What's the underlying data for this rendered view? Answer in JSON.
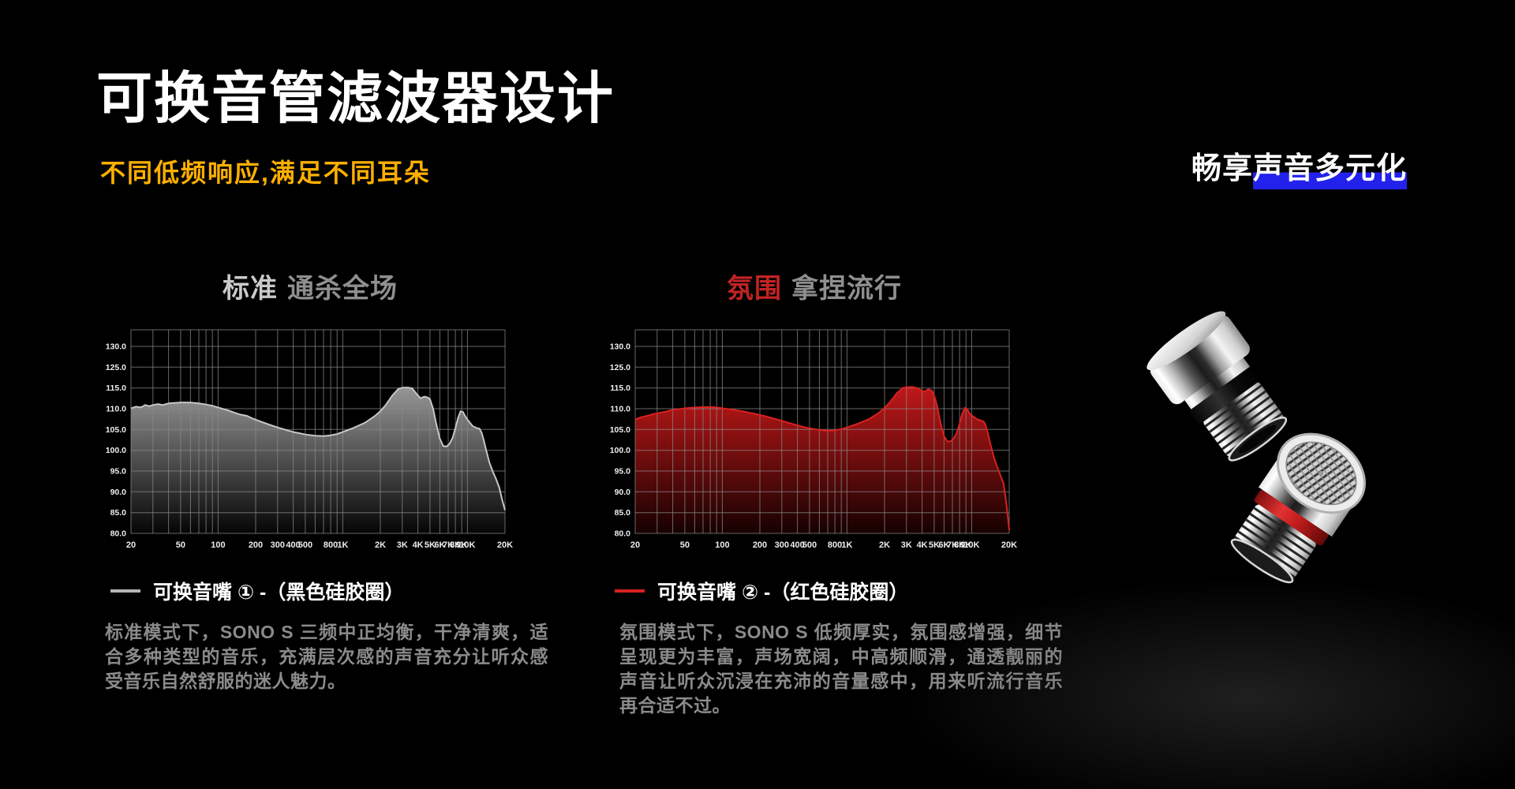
{
  "header": {
    "title": "可换音管滤波器设计",
    "subtitle": "不同低频响应,满足不同耳朵",
    "tagline": {
      "plain": "畅享",
      "highlighted": "声音多元化"
    }
  },
  "colors": {
    "background": "#000000",
    "subtitle_gold": "#ffb000",
    "highlight_blue": "#2222ec",
    "accent_red": "#c32323",
    "body_gray": "#8b8b8b",
    "grid_gray": "#8a8a8a"
  },
  "sections": [
    {
      "id": "standard",
      "title_accent": "标准",
      "title_rest": "通杀全场",
      "legend_label": "可换音嘴 ① -（黑色硅胶圈）",
      "description": "标准模式下，SONO S 三频中正均衡，干净清爽，适合多种类型的音乐，充满层次感的声音充分让听众感受音乐自然舒服的迷人魅力。"
    },
    {
      "id": "ambient",
      "title_accent": "氛围",
      "title_rest": "拿捏流行",
      "legend_label": "可换音嘴 ② -（红色硅胶圈）",
      "description": "氛围模式下，SONO S 低频厚实，氛围感增强，细节呈现更为丰富，声场宽阔，中高频顺滑，通透靓丽的声音让听众沉浸在充沛的音量感中，用来听流行音乐再合适不过。"
    }
  ],
  "product": {
    "name": "replaceable-filter-nozzles",
    "top_nozzle_ring": "黑色硅胶圈",
    "bottom_nozzle_ring": "红色硅胶圈"
  },
  "chart_data": [
    {
      "type": "area",
      "title": "标准 通杀全场",
      "xlabel": "",
      "ylabel": "",
      "x_scale": "log",
      "x_range": [
        20,
        20000
      ],
      "ylim": [
        80,
        130
      ],
      "grid": "on",
      "legend_position": "below",
      "y_tick_labels": [
        "130.0",
        "125.0",
        "115.0",
        "110.0",
        "105.0",
        "100.0",
        "95.0",
        "90.0",
        "85.0",
        "80.0"
      ],
      "x_ticks": [
        [
          20,
          "20"
        ],
        [
          50,
          "50"
        ],
        [
          100,
          "100"
        ],
        [
          200,
          "200"
        ],
        [
          300,
          "300"
        ],
        [
          400,
          "400"
        ],
        [
          500,
          "500"
        ],
        [
          800,
          "800"
        ],
        [
          1000,
          "1K"
        ],
        [
          2000,
          "2K"
        ],
        [
          3000,
          "3K"
        ],
        [
          4000,
          "4K"
        ],
        [
          5000,
          "5K"
        ],
        [
          6000,
          "6K"
        ],
        [
          7000,
          "7K"
        ],
        [
          8000,
          "8K"
        ],
        [
          9000,
          "9K"
        ],
        [
          10000,
          "10K"
        ],
        [
          20000,
          "20K"
        ]
      ],
      "grid_freqs": [
        20,
        30,
        40,
        50,
        60,
        70,
        80,
        90,
        100,
        200,
        300,
        400,
        500,
        600,
        700,
        800,
        900,
        1000,
        2000,
        3000,
        4000,
        5000,
        6000,
        7000,
        8000,
        9000,
        10000,
        20000
      ],
      "series": [
        {
          "name": "可换音嘴 ① -（黑色硅胶圈）",
          "color": "#c6c6c6",
          "fill_top": "#989898",
          "fill_bottom": "#050505",
          "points": [
            [
              20,
              110.1
            ],
            [
              22,
              110.5
            ],
            [
              24,
              110.3
            ],
            [
              26,
              110.9
            ],
            [
              28,
              110.6
            ],
            [
              30,
              110.9
            ],
            [
              33,
              111.1
            ],
            [
              36,
              110.9
            ],
            [
              40,
              111.3
            ],
            [
              45,
              111.4
            ],
            [
              50,
              111.5
            ],
            [
              60,
              111.5
            ],
            [
              70,
              111.3
            ],
            [
              80,
              111.0
            ],
            [
              90,
              110.7
            ],
            [
              100,
              110.3
            ],
            [
              120,
              109.6
            ],
            [
              150,
              108.6
            ],
            [
              170,
              108.3
            ],
            [
              190,
              107.6
            ],
            [
              220,
              106.9
            ],
            [
              260,
              106.1
            ],
            [
              300,
              105.5
            ],
            [
              350,
              104.9
            ],
            [
              400,
              104.4
            ],
            [
              450,
              104.1
            ],
            [
              500,
              103.8
            ],
            [
              600,
              103.5
            ],
            [
              700,
              103.4
            ],
            [
              800,
              103.6
            ],
            [
              900,
              103.9
            ],
            [
              1000,
              104.4
            ],
            [
              1200,
              105.3
            ],
            [
              1500,
              106.6
            ],
            [
              1800,
              108.2
            ],
            [
              2000,
              109.4
            ],
            [
              2200,
              110.8
            ],
            [
              2500,
              113.2
            ],
            [
              2800,
              114.8
            ],
            [
              3000,
              115.1
            ],
            [
              3300,
              115.2
            ],
            [
              3600,
              114.9
            ],
            [
              3900,
              113.6
            ],
            [
              4200,
              112.5
            ],
            [
              4500,
              112.9
            ],
            [
              4800,
              112.7
            ],
            [
              5000,
              112.3
            ],
            [
              5300,
              110.0
            ],
            [
              5600,
              106.5
            ],
            [
              6000,
              102.8
            ],
            [
              6400,
              101.0
            ],
            [
              6800,
              100.9
            ],
            [
              7200,
              101.6
            ],
            [
              7600,
              103.0
            ],
            [
              8000,
              105.3
            ],
            [
              8400,
              107.8
            ],
            [
              8800,
              109.4
            ],
            [
              9200,
              109.2
            ],
            [
              9600,
              108.2
            ],
            [
              10000,
              107.4
            ],
            [
              11000,
              105.8
            ],
            [
              12000,
              105.3
            ],
            [
              12500,
              105.2
            ],
            [
              13000,
              104.2
            ],
            [
              13500,
              102.5
            ],
            [
              14000,
              100.5
            ],
            [
              15000,
              97.0
            ],
            [
              16000,
              94.8
            ],
            [
              17000,
              93.0
            ],
            [
              18000,
              91.0
            ],
            [
              19000,
              88.0
            ],
            [
              20000,
              85.6
            ]
          ]
        }
      ]
    },
    {
      "type": "area",
      "title": "氛围 拿捏流行",
      "xlabel": "",
      "ylabel": "",
      "x_scale": "log",
      "x_range": [
        20,
        20000
      ],
      "ylim": [
        80,
        130
      ],
      "grid": "on",
      "legend_position": "below",
      "y_tick_labels": [
        "130.0",
        "125.0",
        "115.0",
        "110.0",
        "105.0",
        "100.0",
        "95.0",
        "90.0",
        "85.0",
        "80.0"
      ],
      "x_ticks": [
        [
          20,
          "20"
        ],
        [
          50,
          "50"
        ],
        [
          100,
          "100"
        ],
        [
          200,
          "200"
        ],
        [
          300,
          "300"
        ],
        [
          400,
          "400"
        ],
        [
          500,
          "500"
        ],
        [
          800,
          "800"
        ],
        [
          1000,
          "1K"
        ],
        [
          2000,
          "2K"
        ],
        [
          3000,
          "3K"
        ],
        [
          4000,
          "4K"
        ],
        [
          5000,
          "5K"
        ],
        [
          6000,
          "6K"
        ],
        [
          7000,
          "7K"
        ],
        [
          8000,
          "8K"
        ],
        [
          9000,
          "9K"
        ],
        [
          10000,
          "10K"
        ],
        [
          20000,
          "20K"
        ]
      ],
      "grid_freqs": [
        20,
        30,
        40,
        50,
        60,
        70,
        80,
        90,
        100,
        200,
        300,
        400,
        500,
        600,
        700,
        800,
        900,
        1000,
        2000,
        3000,
        4000,
        5000,
        6000,
        7000,
        8000,
        9000,
        10000,
        20000
      ],
      "series": [
        {
          "name": "可换音嘴 ② -（红色硅胶圈）",
          "color": "#d92121",
          "fill_top": "#c21818",
          "fill_bottom": "#160101",
          "points": [
            [
              20,
              107.4
            ],
            [
              22,
              107.9
            ],
            [
              25,
              108.3
            ],
            [
              28,
              108.7
            ],
            [
              30,
              108.9
            ],
            [
              35,
              109.3
            ],
            [
              40,
              109.7
            ],
            [
              45,
              109.9
            ],
            [
              50,
              110.1
            ],
            [
              60,
              110.3
            ],
            [
              70,
              110.4
            ],
            [
              80,
              110.4
            ],
            [
              90,
              110.3
            ],
            [
              100,
              110.1
            ],
            [
              120,
              109.8
            ],
            [
              150,
              109.3
            ],
            [
              180,
              108.8
            ],
            [
              220,
              108.2
            ],
            [
              260,
              107.6
            ],
            [
              300,
              107.1
            ],
            [
              350,
              106.5
            ],
            [
              400,
              106.0
            ],
            [
              450,
              105.6
            ],
            [
              500,
              105.3
            ],
            [
              600,
              104.9
            ],
            [
              700,
              104.7
            ],
            [
              800,
              104.8
            ],
            [
              900,
              105.1
            ],
            [
              1000,
              105.5
            ],
            [
              1200,
              106.3
            ],
            [
              1500,
              107.5
            ],
            [
              1800,
              109.0
            ],
            [
              2000,
              110.2
            ],
            [
              2200,
              111.5
            ],
            [
              2500,
              113.7
            ],
            [
              2800,
              115.0
            ],
            [
              3000,
              115.3
            ],
            [
              3300,
              115.5
            ],
            [
              3600,
              115.1
            ],
            [
              3900,
              114.5
            ],
            [
              4200,
              114.1
            ],
            [
              4500,
              114.7
            ],
            [
              4800,
              114.3
            ],
            [
              5000,
              113.2
            ],
            [
              5300,
              110.5
            ],
            [
              5600,
              106.8
            ],
            [
              6000,
              103.4
            ],
            [
              6400,
              102.1
            ],
            [
              6800,
              102.2
            ],
            [
              7200,
              102.9
            ],
            [
              7600,
              104.2
            ],
            [
              8000,
              106.4
            ],
            [
              8400,
              108.8
            ],
            [
              8800,
              110.2
            ],
            [
              9200,
              109.9
            ],
            [
              9600,
              108.9
            ],
            [
              10000,
              108.4
            ],
            [
              11000,
              107.5
            ],
            [
              12000,
              107.1
            ],
            [
              12500,
              106.9
            ],
            [
              13000,
              105.9
            ],
            [
              13500,
              104.1
            ],
            [
              14000,
              102.0
            ],
            [
              15000,
              98.5
            ],
            [
              16000,
              96.0
            ],
            [
              17000,
              94.0
            ],
            [
              18000,
              92.0
            ],
            [
              19000,
              87.0
            ],
            [
              20000,
              80.8
            ]
          ]
        }
      ]
    }
  ]
}
